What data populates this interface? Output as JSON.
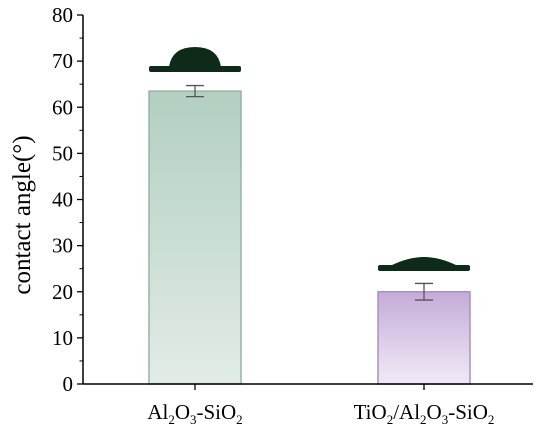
{
  "chart_data": {
    "type": "bar",
    "title": "",
    "xlabel": "",
    "ylabel": "contact angle(°)",
    "ylim": [
      0,
      80
    ],
    "yticks": [
      0,
      10,
      20,
      30,
      40,
      50,
      60,
      70,
      80
    ],
    "categories": [
      {
        "label": "Al2O3-SiO2",
        "parts": [
          [
            "Al",
            ""
          ],
          [
            "2",
            "sub"
          ],
          [
            "O",
            ""
          ],
          [
            "3",
            "sub"
          ],
          [
            "-SiO",
            ""
          ],
          [
            "2",
            "sub"
          ]
        ]
      },
      {
        "label": "TiO2/Al2O3-SiO2",
        "parts": [
          [
            "TiO",
            ""
          ],
          [
            "2",
            "sub"
          ],
          [
            "/Al",
            ""
          ],
          [
            "2",
            "sub"
          ],
          [
            "O",
            ""
          ],
          [
            "3",
            "sub"
          ],
          [
            "-SiO",
            ""
          ],
          [
            "2",
            "sub"
          ]
        ]
      }
    ],
    "values": [
      63.5,
      20.0
    ],
    "errors": [
      1.2,
      1.8
    ],
    "droplet_inset_angles": [
      70,
      25
    ],
    "grid": false,
    "legend": "none",
    "colors": {
      "bar1_top": "#b2cfc0",
      "bar1_bottom": "#e2ece6",
      "bar1_edge": "#97b4a6",
      "bar2_top": "#c4abd8",
      "bar2_bottom": "#f1eaf7",
      "bar2_edge": "#a792bd",
      "droplet": "#0e2a18",
      "error_bar": "#555555",
      "axis": "#000000"
    }
  }
}
